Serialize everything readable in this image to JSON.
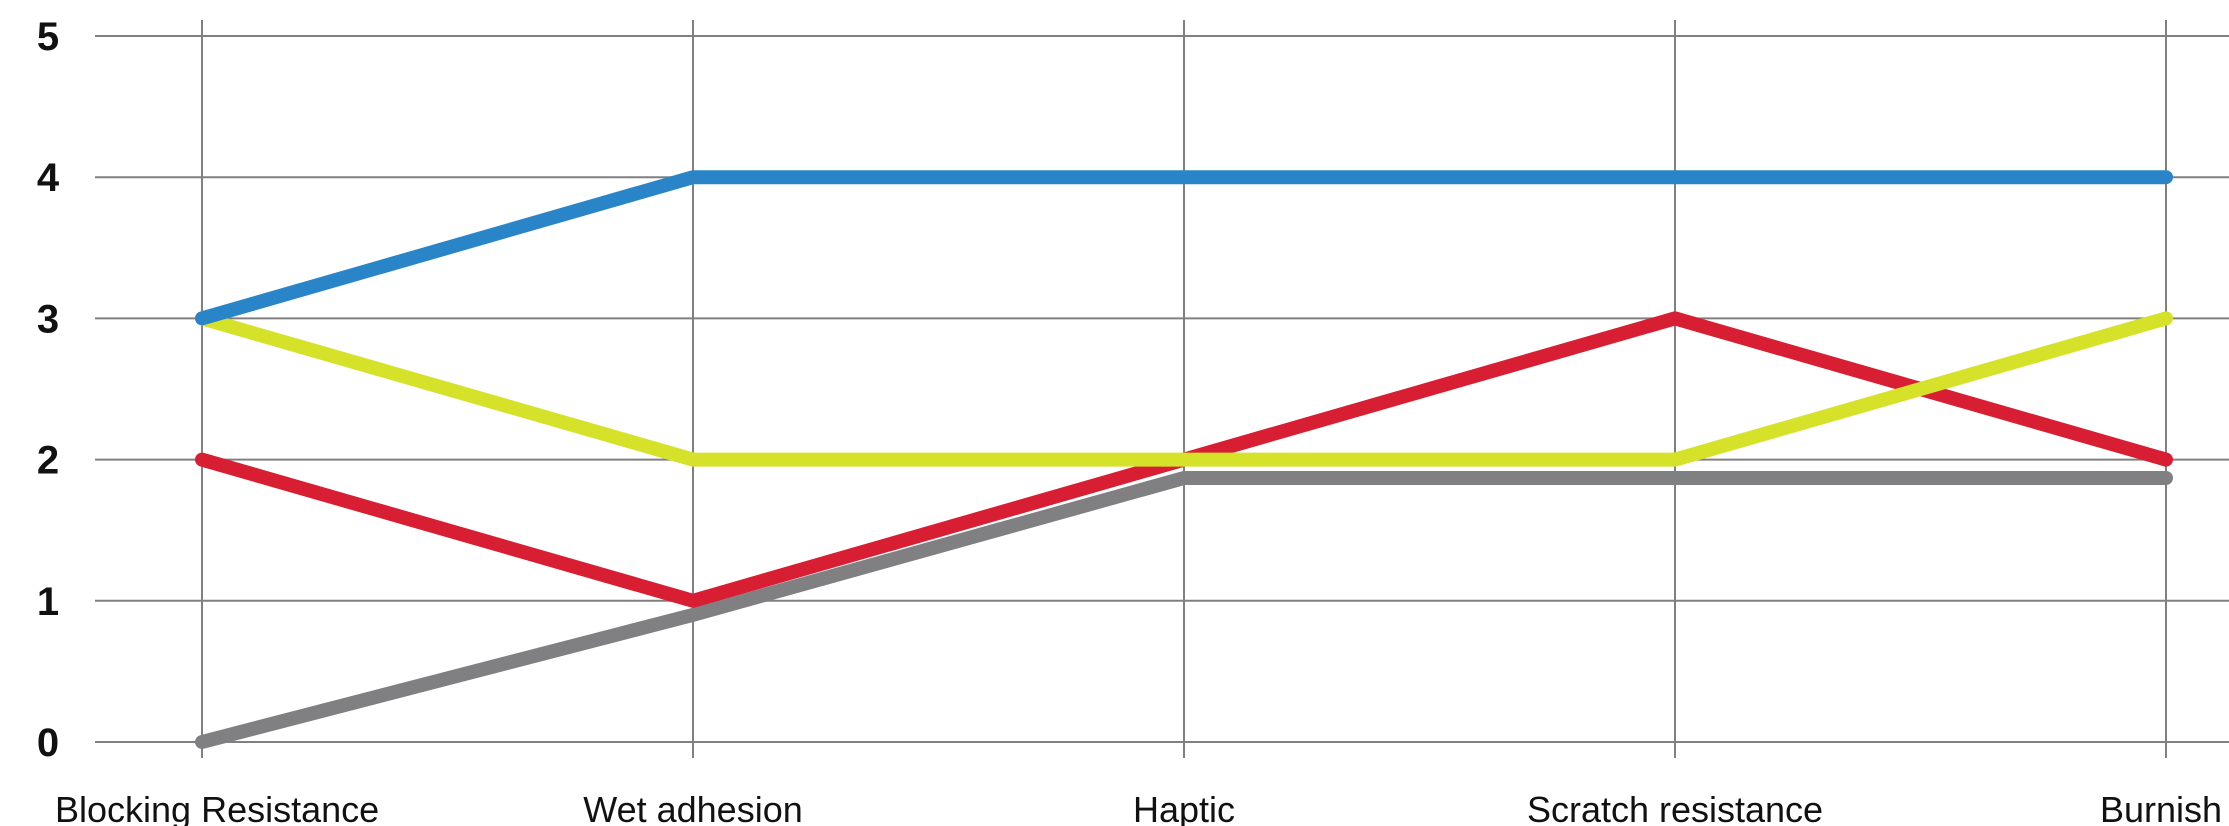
{
  "chart_data": {
    "type": "line",
    "categories": [
      "Blocking Resistance",
      "Wet adhesion",
      "Haptic",
      "Scratch resistance",
      "Burnish"
    ],
    "ylim": [
      0,
      5
    ],
    "yticks": [
      "0",
      "1",
      "2",
      "3",
      "4",
      "5"
    ],
    "grid": true,
    "series": [
      {
        "color": "#2a85c8",
        "values": [
          3,
          4,
          4,
          4,
          4
        ]
      },
      {
        "color": "#d6e12a",
        "values": [
          3,
          2,
          2,
          2,
          3
        ]
      },
      {
        "color": "#d81e32",
        "values": [
          2,
          1,
          2,
          3,
          2
        ]
      },
      {
        "color": "#808083",
        "values": [
          0,
          0.9,
          1.87,
          1.87,
          1.87
        ]
      }
    ]
  }
}
